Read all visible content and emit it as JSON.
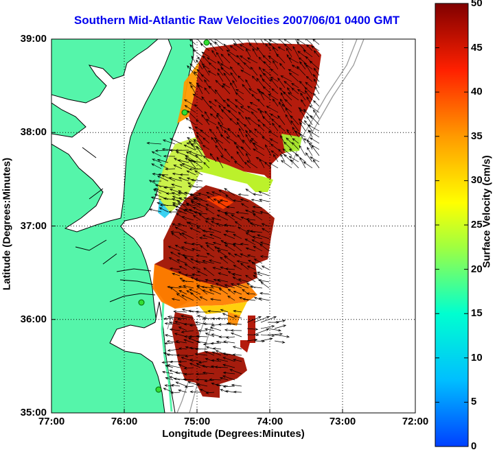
{
  "title": "Southern Mid-Atlantic Raw Velocities 2007/06/01 0400 GMT",
  "x_axis": {
    "label": "Longitude (Degrees:Minutes)",
    "ticks": [
      "77:00",
      "76:00",
      "75:00",
      "74:00",
      "73:00",
      "72:00"
    ]
  },
  "y_axis": {
    "label": "Latitude (Degrees:Minutes)",
    "ticks": [
      "39:00",
      "38:00",
      "37:00",
      "36:00",
      "35:00"
    ]
  },
  "colorbar": {
    "label": "Surface Velocity (cm/s)",
    "ticks": [
      "50",
      "45",
      "40",
      "35",
      "30",
      "25",
      "20",
      "15",
      "10",
      "5",
      "0"
    ],
    "range": [
      0,
      50
    ],
    "colormap": "jet"
  },
  "map": {
    "lon_range": [
      -77,
      -72
    ],
    "lat_range": [
      35,
      39
    ],
    "grid": "dotted",
    "land_color": "#55f5aa",
    "coastline_color": "#000000",
    "bathymetry_color": "#888888",
    "station_marker_color": "#33dd33"
  }
}
